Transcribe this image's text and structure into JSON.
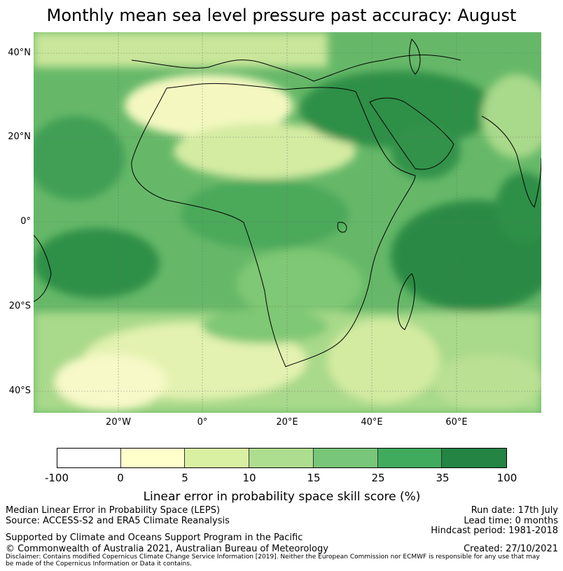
{
  "title": "Monthly mean sea level pressure past accuracy: August",
  "map": {
    "lat_labels": [
      "40°N",
      "20°N",
      "0°",
      "20°S",
      "40°S"
    ],
    "lon_labels": [
      "20°W",
      "0°",
      "20°E",
      "40°E",
      "60°E"
    ],
    "colors": {
      "ocean_main": "#66b868",
      "sahara_pale": "#f7f9c4",
      "light_green": "#d6ebA2",
      "mid_green": "#9fd484",
      "dark_green": "#2e8f45",
      "coast": "#000000",
      "grid": "#6b6b6b"
    }
  },
  "colorbar": {
    "ticks": [
      "-100",
      "0",
      "5",
      "10",
      "15",
      "25",
      "35",
      "100"
    ],
    "colors": [
      "#ffffff",
      "#ffffcc",
      "#d9f0a3",
      "#addd8e",
      "#78c679",
      "#41ab5d",
      "#238443"
    ],
    "label": "Linear error in probability space skill score (%)"
  },
  "footer": {
    "method": "Median Linear Error in Probability Space (LEPS)",
    "source": "Source: ACCESS-S2 and ERA5 Climate Reanalysis",
    "run_date": "Run date: 17th July",
    "lead_time": "Lead time: 0 months",
    "hindcast": "Hindcast period: 1981-2018",
    "support": "Supported by Climate and Oceans Support Program in the Pacific",
    "copyright": "© Commonwealth of Australia 2021, Australian Bureau of Meteorology",
    "created": "Created: 27/10/2021",
    "disclaimer_1": "Disclaimer: Contains modified Copernicus Climate Change Service Information [2019]. Neither the European Commission nor ECMWF is responsible for any use that may",
    "disclaimer_2": "be made of the Copernicus Information or Data it contains."
  }
}
